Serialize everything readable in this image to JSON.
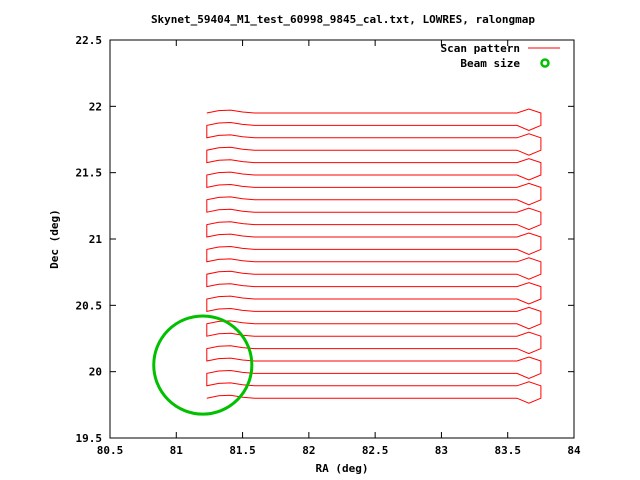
{
  "chart_data": {
    "type": "line",
    "title": "Skynet_59404_M1_test_60998_9845_cal.txt, LOWRES, ralongmap",
    "xlabel": "RA (deg)",
    "ylabel": "Dec (deg)",
    "xlim": [
      80.5,
      84
    ],
    "ylim": [
      19.5,
      22.5
    ],
    "xticks": [
      "80.5",
      "81",
      "81.5",
      "82",
      "82.5",
      "83",
      "83.5",
      "84"
    ],
    "yticks": [
      "19.5",
      "20",
      "20.5",
      "21",
      "21.5",
      "22",
      "22.5"
    ],
    "grid": false,
    "legend": {
      "placement": "top-right",
      "entries": [
        {
          "label": "Scan pattern",
          "color": "#ff0000",
          "style": "line"
        },
        {
          "label": "Beam size",
          "color": "#00c000",
          "style": "circle-marker"
        }
      ]
    },
    "series": [
      {
        "name": "Scan pattern",
        "color": "#ff0000",
        "scans": {
          "ra_start": 81.23,
          "ra_end": 83.75,
          "dec_start": 19.8,
          "dec_end": 21.95,
          "count": 24,
          "note_pattern": "back-and-forth raster in RA"
        }
      },
      {
        "name": "Beam size",
        "color": "#00c000",
        "circle": {
          "center_ra": 81.2,
          "center_dec": 20.05,
          "radius_deg": 0.37
        }
      }
    ]
  }
}
